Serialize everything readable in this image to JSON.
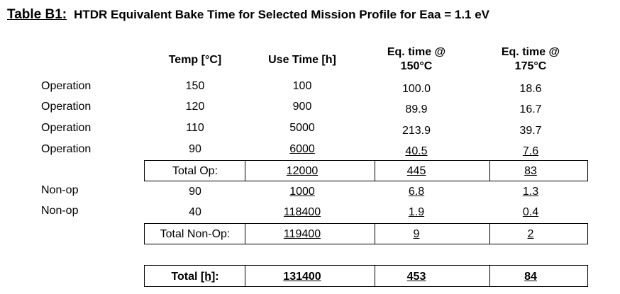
{
  "title": {
    "label": "Table B1:",
    "text": "HTDR Equivalent Bake Time for Selected Mission Profile for Eaa = 1.1 eV"
  },
  "headers": {
    "temp": "Temp [°C]",
    "use_time": "Use Time [h]",
    "eq150_line1": "Eq. time @",
    "eq150_line2": "150°C",
    "eq175_line1": "Eq. time @",
    "eq175_line2": "175°C"
  },
  "rows": [
    {
      "label": "Operation",
      "temp": "150",
      "use": "100",
      "eq150": "100.0",
      "eq175": "18.6"
    },
    {
      "label": "Operation",
      "temp": "120",
      "use": "900",
      "eq150": "89.9",
      "eq175": "16.7"
    },
    {
      "label": "Operation",
      "temp": "110",
      "use": "5000",
      "eq150": "213.9",
      "eq175": "39.7"
    },
    {
      "label": "Operation",
      "temp": "90",
      "use": "6000",
      "eq150": "40.5",
      "eq175": "7.6"
    }
  ],
  "total_op": {
    "label": "Total Op:",
    "use": "12000",
    "eq150": "445",
    "eq175": "83"
  },
  "nonop_rows": [
    {
      "label": "Non-op",
      "temp": "90",
      "use": "1000",
      "eq150": "6.8",
      "eq175": "1.3"
    },
    {
      "label": "Non-op",
      "temp": "40",
      "use": "118400",
      "eq150": "1.9",
      "eq175": "0.4"
    }
  ],
  "total_nonop": {
    "label": "Total Non-Op:",
    "use": "119400",
    "eq150": "9",
    "eq175": "2"
  },
  "total": {
    "label_prefix": "Total ",
    "label_unit": "[h]",
    "label_suffix": ":",
    "use": "131400",
    "eq150": "453",
    "eq175": "84"
  }
}
